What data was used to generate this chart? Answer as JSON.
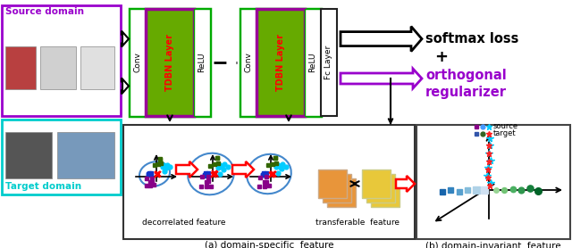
{
  "source_label": "Source domain",
  "target_label": "Target domain",
  "softmax_text": "softmax loss",
  "plus_text": "+",
  "conv_label": "Conv",
  "tdbn_label": "TDBN Layer",
  "relu_label": "ReLU",
  "fc_label": "Fc Layer",
  "decorrelated_text": "decorrelated feature",
  "transferable_text": "transferable  feature",
  "domain_specific_text": "(a) domain-specific  feature",
  "domain_invariant_text": "(b) domain-invariant  feature",
  "source_legend": "source",
  "target_legend": "target",
  "source_box_color": "#9900cc",
  "target_box_color": "#00cccc",
  "nn_outer_color": "#00aa00",
  "tdbn_bg_color": "#66aa00",
  "tdbn_border_color": "#990099",
  "orthogonal_color": "#9900cc",
  "red_color": "#ff0000",
  "orange_stack_color": "#e8953a",
  "yellow_stack_color": "#e8c83a"
}
